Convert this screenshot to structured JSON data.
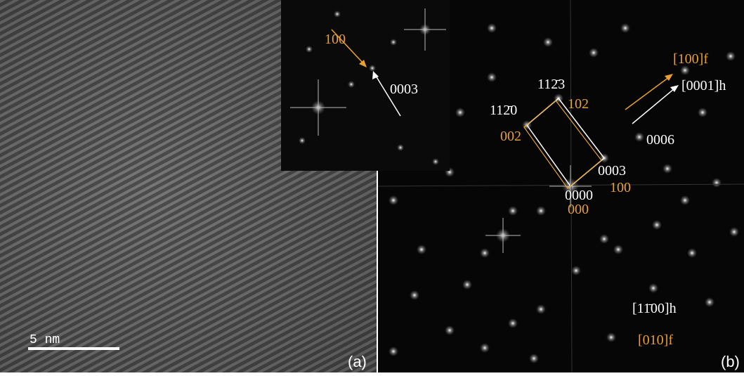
{
  "panel_a": {
    "label": "(a)",
    "scale_bar": "5 nm"
  },
  "inset": {
    "labels": [
      "100",
      "0003"
    ]
  },
  "panel_b": {
    "label": "(b)",
    "hex_indices": [
      "112̄3",
      "112̄0",
      "0003",
      "0000",
      "0006"
    ],
    "fcc_indices": [
      "102",
      "002",
      "100",
      "000"
    ],
    "directions": {
      "fcc_beam": "[100]f",
      "hex_beam": "[0001]h",
      "hex_zone": "[11̄00]h",
      "fcc_zone": "[010]f"
    }
  }
}
